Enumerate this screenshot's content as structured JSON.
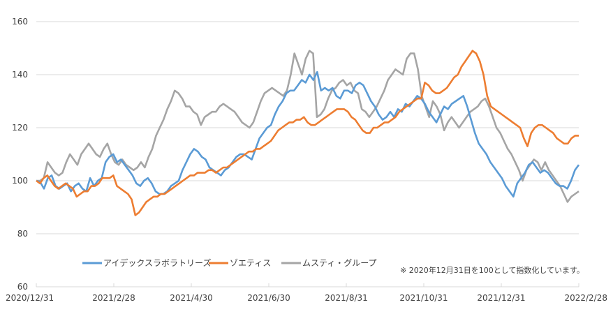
{
  "chart_data": {
    "type": "line",
    "title": "",
    "xlabel": "",
    "ylabel": "",
    "ylim": [
      60,
      160
    ],
    "yticks": [
      60,
      80,
      100,
      120,
      140,
      160
    ],
    "xtick_labels": [
      "2020/12/31",
      "2021/2/28",
      "2021/4/30",
      "2021/6/30",
      "2021/8/31",
      "2021/10/31",
      "2021/12/31",
      "2022/2/28"
    ],
    "grid": true,
    "legend_position": "inside-bottom",
    "note": "※ 2020年12月31日を100として指数化しています。",
    "x_start": "2020/12/31",
    "x_end": "2022/2/28",
    "series": [
      {
        "name": "アイデックスラボラトリーズ",
        "color": "#5B9BD5",
        "values": [
          100,
          99.5,
          97,
          101,
          102,
          98,
          97,
          98,
          99,
          96,
          98,
          99,
          97,
          96,
          101,
          98,
          100,
          101,
          107,
          109,
          110,
          107,
          108,
          106,
          104,
          102,
          99,
          98,
          100,
          101,
          99,
          96,
          95,
          95,
          96,
          98,
          99,
          100,
          104,
          107,
          110,
          112,
          111,
          109,
          108,
          105,
          104,
          103,
          102,
          104,
          105,
          107,
          109,
          110,
          110,
          109,
          108,
          112,
          116,
          118,
          120,
          121,
          125,
          128,
          130,
          133,
          134,
          134,
          136,
          138,
          137,
          140,
          138,
          141,
          134,
          135,
          134,
          135,
          132,
          131,
          134,
          134,
          133,
          136,
          137,
          136,
          133,
          130,
          128,
          125,
          123,
          124,
          126,
          124,
          127,
          126,
          129,
          128,
          130,
          132,
          131,
          129,
          126,
          124,
          122,
          125,
          128,
          127,
          129,
          130,
          131,
          132,
          128,
          123,
          118,
          114,
          112,
          110,
          107,
          105,
          103,
          101,
          98,
          96,
          94,
          99,
          101,
          103,
          106,
          107,
          105,
          103,
          104,
          103,
          101,
          99,
          98,
          98,
          97,
          100,
          104,
          106
        ]
      },
      {
        "name": "ゾエティス",
        "color": "#ED7D31",
        "values": [
          100,
          99,
          101,
          102,
          100,
          98,
          97,
          98,
          99,
          98,
          97,
          94,
          95,
          96,
          96,
          98,
          98,
          99,
          101,
          101,
          101,
          102,
          98,
          97,
          96,
          95,
          93,
          87,
          88,
          90,
          92,
          93,
          94,
          94,
          95,
          95,
          96,
          97,
          98,
          99,
          100,
          101,
          102,
          102,
          103,
          103,
          103,
          104,
          104,
          103,
          104,
          105,
          105,
          106,
          107,
          108,
          109,
          110,
          111,
          111,
          112,
          112,
          113,
          114,
          115,
          117,
          119,
          120,
          121,
          122,
          122,
          123,
          123,
          124,
          122,
          121,
          121,
          122,
          123,
          124,
          125,
          126,
          127,
          127,
          127,
          126,
          124,
          123,
          121,
          119,
          118,
          118,
          120,
          120,
          121,
          122,
          122,
          123,
          124,
          126,
          127,
          128,
          129,
          130,
          131,
          131,
          137,
          136,
          134,
          133,
          133,
          134,
          135,
          137,
          139,
          140,
          143,
          145,
          147,
          149,
          148,
          145,
          140,
          132,
          128,
          127,
          126,
          125,
          124,
          123,
          122,
          121,
          120,
          116,
          113,
          118,
          120,
          121,
          121,
          120,
          119,
          118,
          116,
          115,
          114,
          114,
          116,
          117,
          117
        ]
      },
      {
        "name": "ムスティ・グループ",
        "color": "#A5A5A5",
        "values": [
          100,
          100,
          101,
          107,
          105,
          103,
          102,
          103,
          107,
          110,
          108,
          106,
          110,
          112,
          114,
          112,
          110,
          109,
          112,
          114,
          110,
          107,
          106,
          108,
          106,
          105,
          104,
          105,
          107,
          105,
          109,
          112,
          117,
          120,
          123,
          127,
          130,
          134,
          133,
          131,
          128,
          128,
          126,
          125,
          121,
          124,
          125,
          126,
          126,
          128,
          129,
          128,
          127,
          126,
          124,
          122,
          121,
          120,
          122,
          126,
          130,
          133,
          134,
          135,
          134,
          133,
          132,
          134,
          140,
          148,
          144,
          140,
          146,
          149,
          148,
          124,
          125,
          127,
          131,
          134,
          135,
          137,
          138,
          136,
          137,
          134,
          133,
          127,
          126,
          124,
          126,
          128,
          131,
          134,
          138,
          140,
          142,
          141,
          140,
          146,
          148,
          148,
          142,
          132,
          128,
          124,
          130,
          128,
          125,
          119,
          122,
          124,
          122,
          120,
          122,
          124,
          126,
          127,
          128,
          130,
          131,
          128,
          124,
          120,
          118,
          115,
          112,
          110,
          107,
          104,
          100,
          104,
          106,
          108,
          107,
          104,
          107,
          104,
          102,
          100,
          98,
          95,
          92,
          94,
          95,
          96
        ]
      }
    ]
  },
  "legend": {
    "items": [
      {
        "label": "アイデックスラボラトリーズ",
        "color": "#5B9BD5"
      },
      {
        "label": "ゾエティス",
        "color": "#ED7D31"
      },
      {
        "label": "ムスティ・グループ",
        "color": "#A5A5A5"
      }
    ]
  }
}
